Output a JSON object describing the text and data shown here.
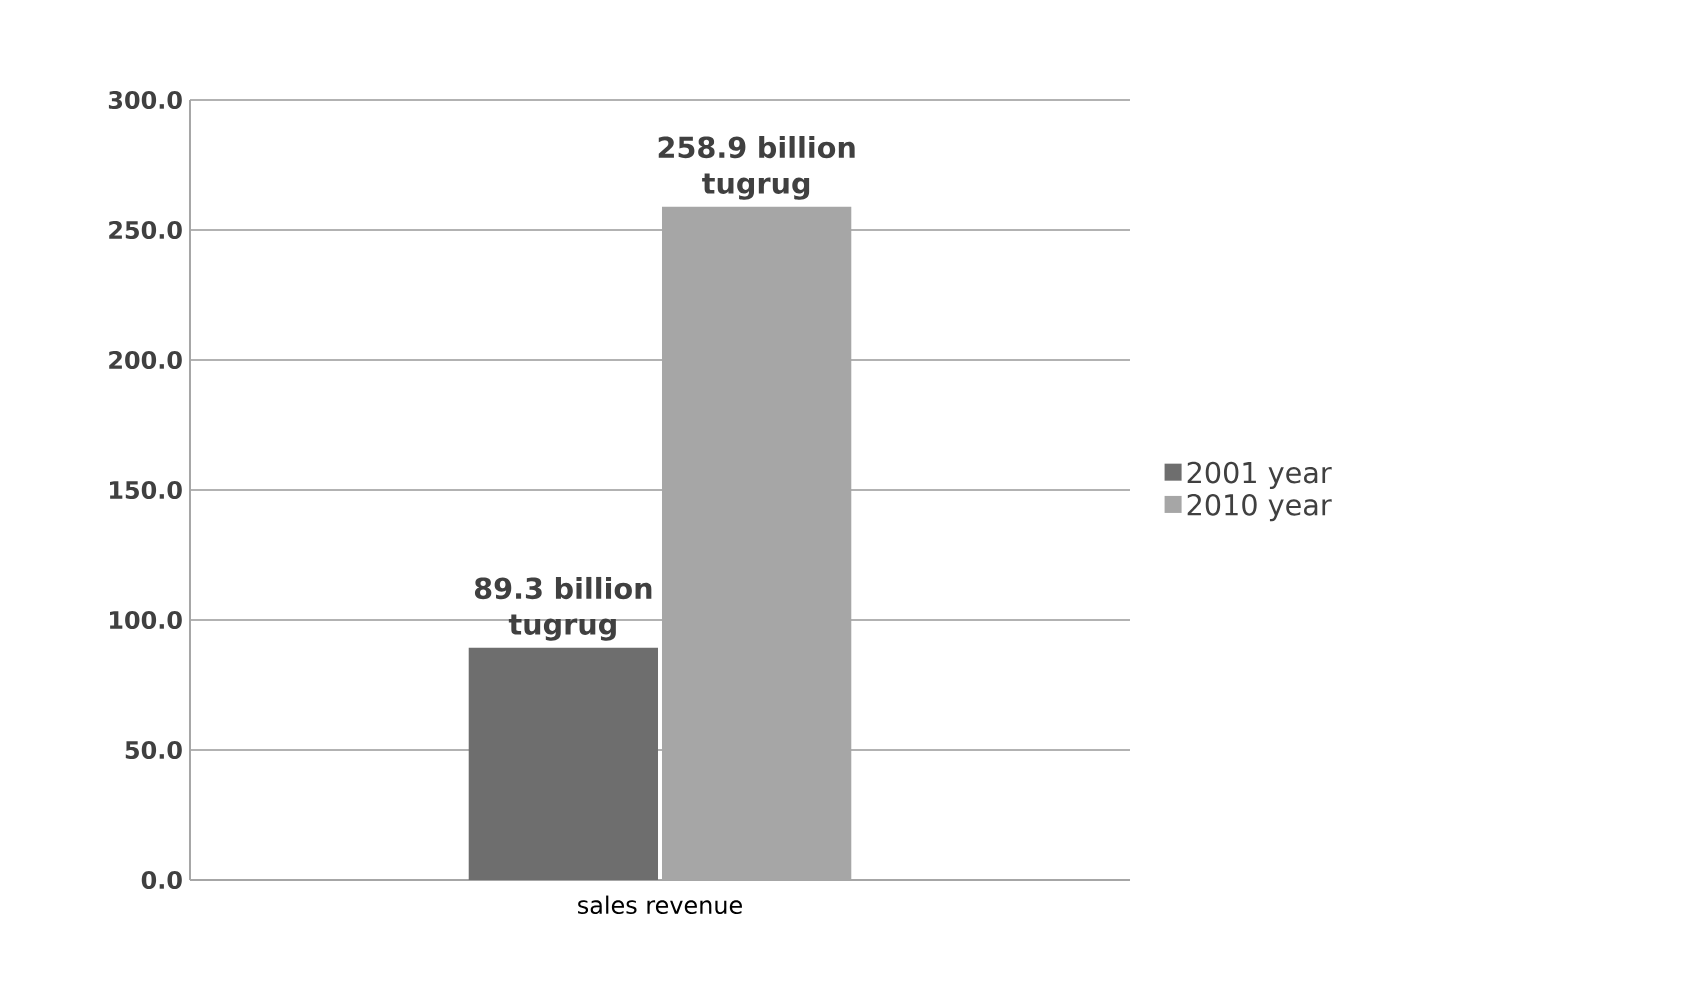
{
  "chart_data": {
    "type": "bar",
    "categories": [
      "sales revenue"
    ],
    "series": [
      {
        "name": "2001 year",
        "color": "#6e6e6e",
        "values": [
          89.3
        ],
        "value_labels": [
          "89.3 billion tugrug"
        ]
      },
      {
        "name": "2010 year",
        "color": "#a6a6a6",
        "values": [
          258.9
        ],
        "value_labels": [
          "258.9 billion tugrug"
        ]
      }
    ],
    "ylim": [
      0,
      300
    ],
    "yticks": [
      {
        "value": 0,
        "label": "0.0"
      },
      {
        "value": 50,
        "label": "50.0"
      },
      {
        "value": 100,
        "label": "100.0"
      },
      {
        "value": 150,
        "label": "150.0"
      },
      {
        "value": 200,
        "label": "200.0"
      },
      {
        "value": 250,
        "label": "250.0"
      },
      {
        "value": 300,
        "label": "300.0"
      }
    ],
    "grid": "y",
    "legend": "right"
  }
}
